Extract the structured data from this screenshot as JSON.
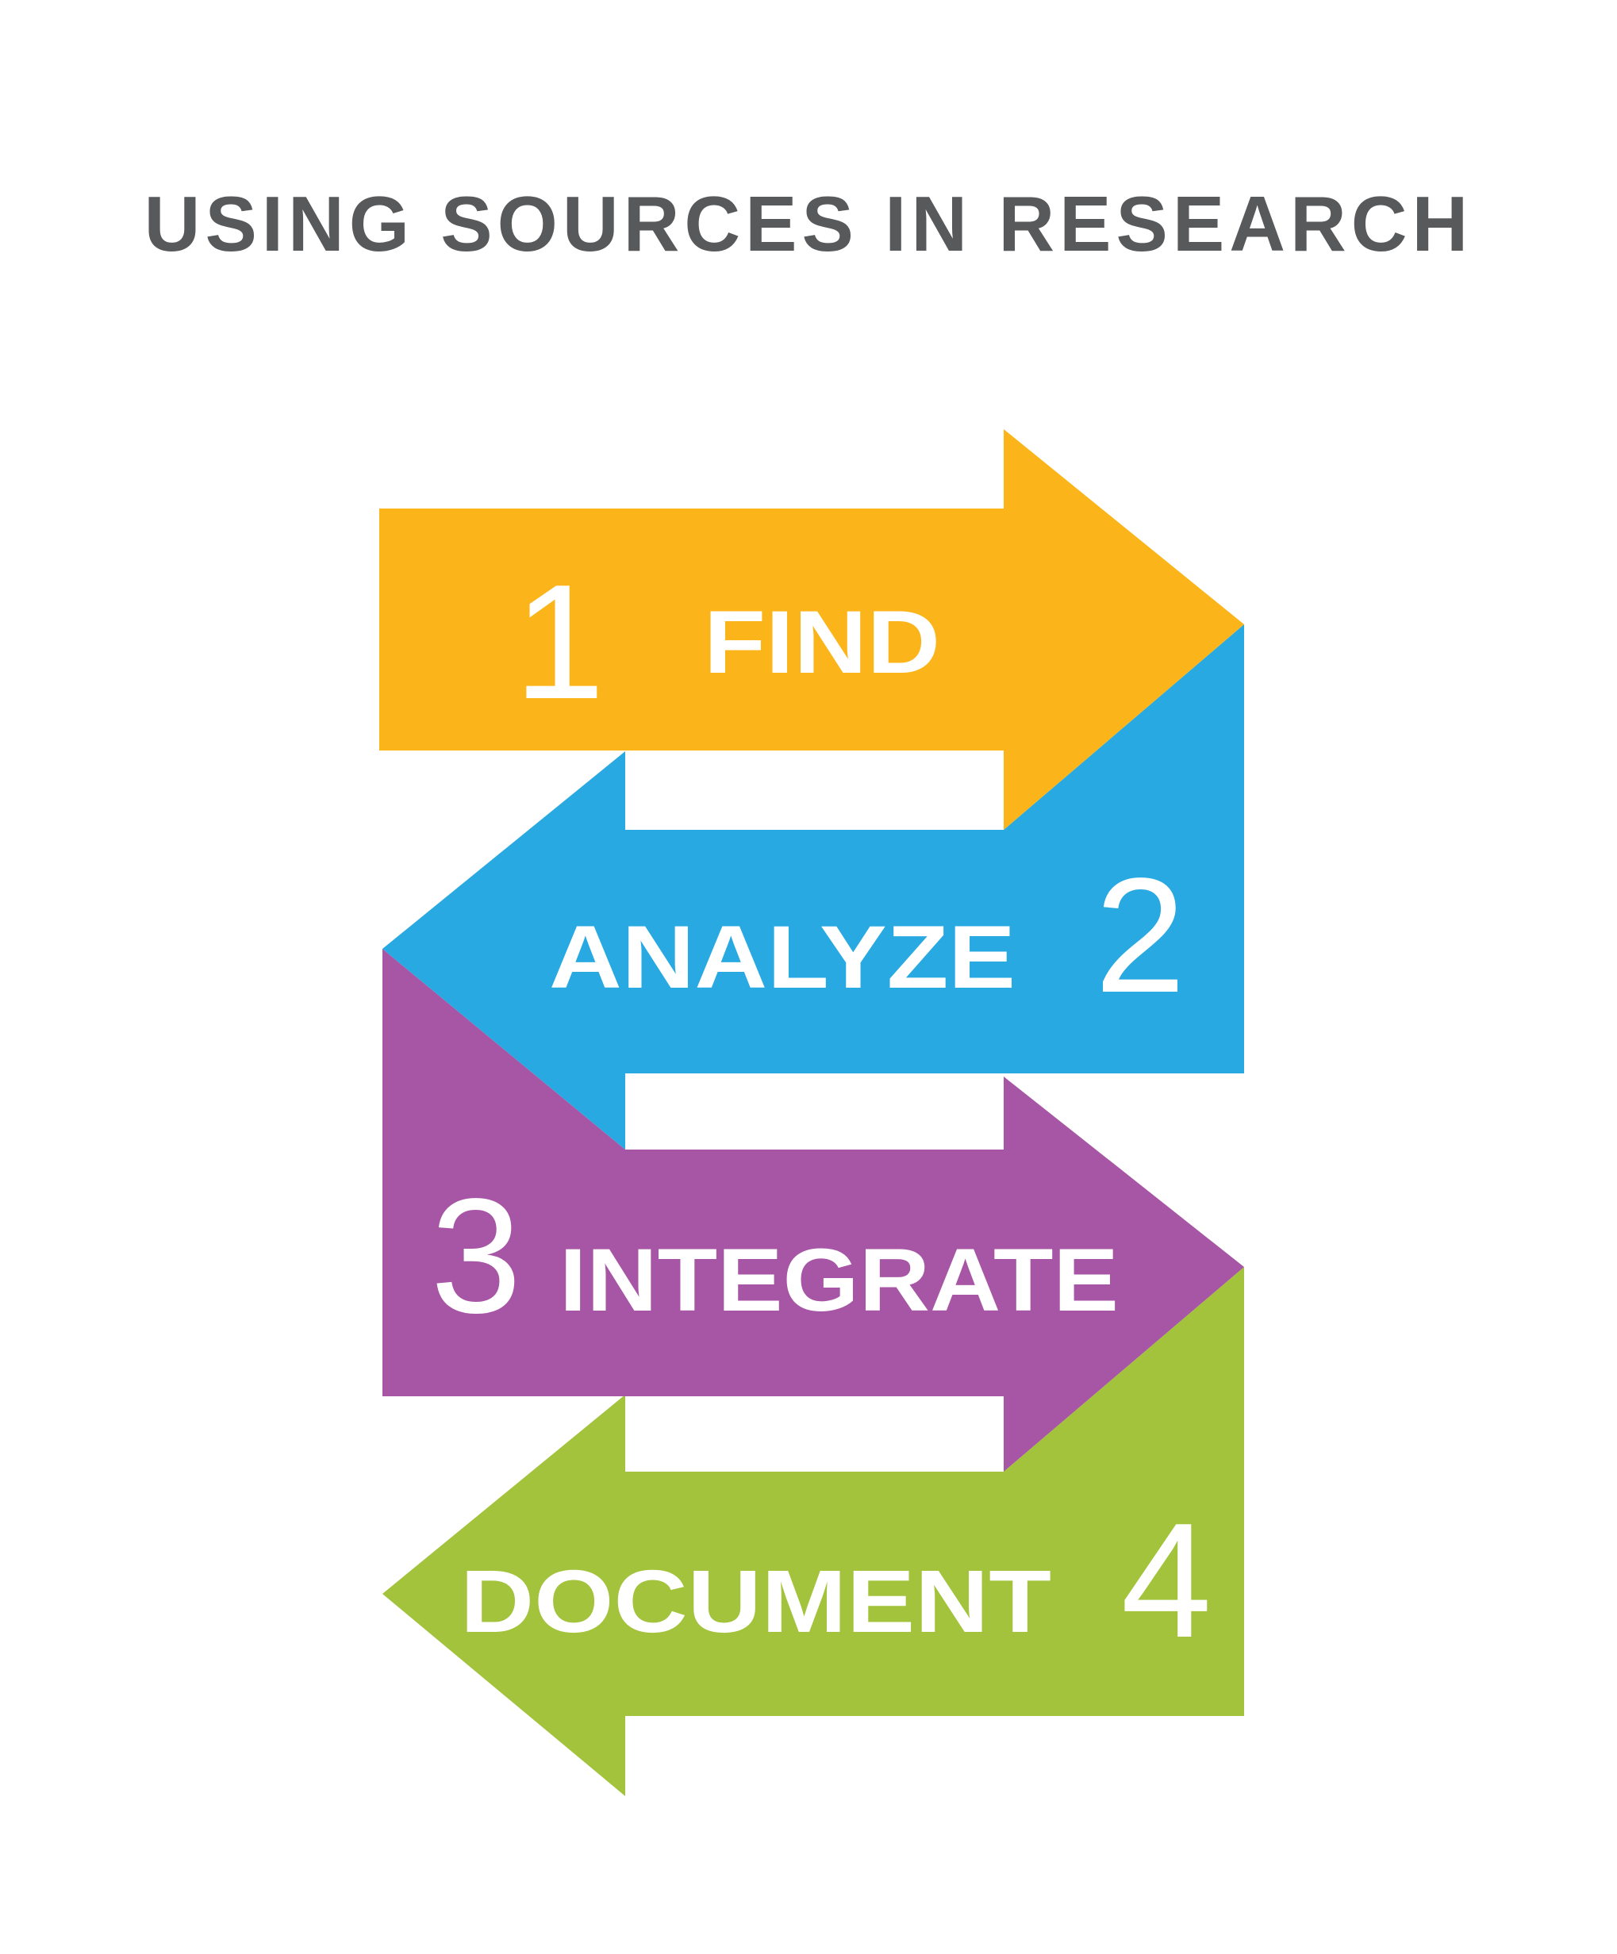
{
  "title": "USING SOURCES IN RESEARCH",
  "steps": [
    {
      "number": "1",
      "label": "FIND",
      "direction": "right",
      "color": "#fbb51b"
    },
    {
      "number": "2",
      "label": "ANALYZE",
      "direction": "left",
      "color": "#29a9e1"
    },
    {
      "number": "3",
      "label": "INTEGRATE",
      "direction": "right",
      "color": "#a756a5"
    },
    {
      "number": "4",
      "label": "DOCUMENT",
      "direction": "left",
      "color": "#a2c33b"
    }
  ]
}
